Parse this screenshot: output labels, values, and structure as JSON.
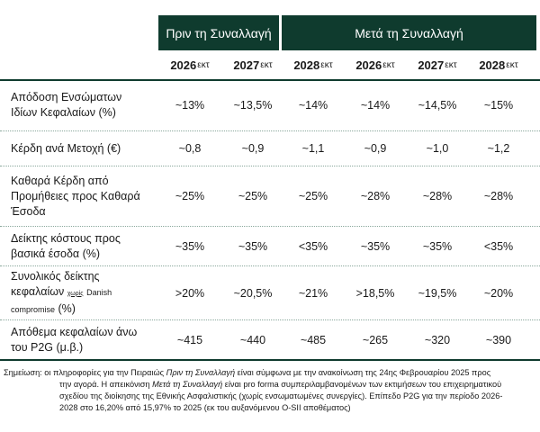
{
  "header": {
    "before": "Πριν τη Συναλλαγή",
    "after": "Μετά τη Συναλλαγή"
  },
  "years": [
    {
      "year": "2026",
      "suffix": "εκτ"
    },
    {
      "year": "2027",
      "suffix": "εκτ"
    },
    {
      "year": "2028",
      "suffix": "εκτ"
    },
    {
      "year": "2026",
      "suffix": "εκτ"
    },
    {
      "year": "2027",
      "suffix": "εκτ"
    },
    {
      "year": "2028",
      "suffix": "εκτ"
    }
  ],
  "rows": [
    {
      "label_lines": [
        "Απόδοση Ενσώματων",
        "Ιδίων Κεφαλαίων (%)"
      ],
      "values": [
        "~13%",
        "~13,5%",
        "~14%",
        "~14%",
        "~14,5%",
        "~15%"
      ]
    },
    {
      "label_lines": [
        "Κέρδη ανά Μετοχή (€)"
      ],
      "values": [
        "~0,8",
        "~0,9",
        "~1,1",
        "~0,9",
        "~1,0",
        "~1,2"
      ]
    },
    {
      "label_lines": [
        "Καθαρά Κέρδη από",
        "Προμήθειες προς Καθαρά",
        "Έσοδα"
      ],
      "values": [
        "~25%",
        "~25%",
        "~25%",
        "~28%",
        "~28%",
        "~28%"
      ]
    },
    {
      "label_lines": [
        "Δείκτης κόστους προς",
        "βασικά έσοδα (%)"
      ],
      "values": [
        "~35%",
        "~35%",
        "<35%",
        "~35%",
        "~35%",
        "<35%"
      ]
    },
    {
      "label_parts": {
        "line1": "Συνολικός δείκτης",
        "line2_main": "κεφαλαίων",
        "line2_sub": "χωρίς",
        "line2_small": "Danish",
        "line3_small": "compromise",
        "line3_main": "(%)"
      },
      "values": [
        ">20%",
        "~20,5%",
        "~21%",
        ">18,5%",
        "~19,5%",
        "~20%"
      ]
    },
    {
      "label_lines": [
        "Απόθεμα κεφαλαίων άνω",
        "του P2G (μ.β.)"
      ],
      "values": [
        "~415",
        "~440",
        "~485",
        "~265",
        "~320",
        "~390"
      ]
    }
  ],
  "note": {
    "prefix": "Σημείωση: οι πληροφορίες για την Πειραιώς ",
    "italic1": "Πριν τη Συναλλαγή",
    "mid1": " είναι σύμφωνα με την ανακοίνωση της 24ης Φεβρουαρίου 2025 προς",
    "line2a": "την αγορά. Η απεικόνιση ",
    "italic2": "Μετά τη Συναλλαγή",
    "line2b": " είναι pro forma συμπεριλαμβανομένων των εκτιμήσεων του επιχειρηματικού",
    "line3": "σχεδίου της διοίκησης της Εθνικής Ασφαλιστικής (χωρίς ενσωματωμένες συνεργίες). Επίπεδο P2G για την περίοδο 2026-",
    "line4": "2028 στο 16,20% από 15,97% το 2025 (εκ του αυξανόμενου O-SII αποθέματος)"
  }
}
